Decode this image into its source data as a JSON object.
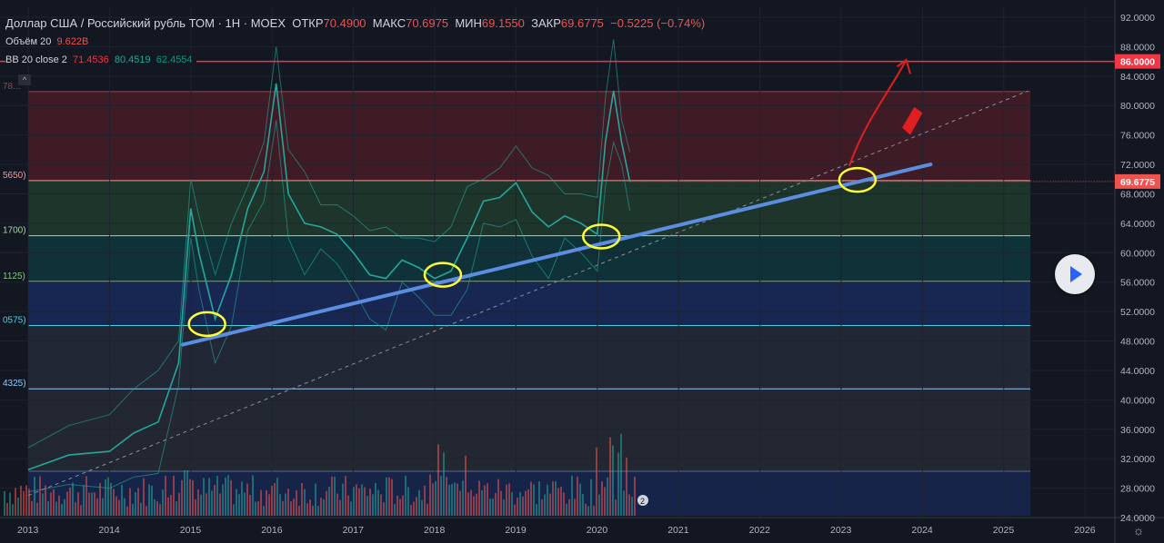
{
  "header": {
    "title": "Доллар США / Российский рубль ТОМ · 1Н · MOEX",
    "open_label": "ОТКР",
    "open": "70.4900",
    "high_label": "МАКС",
    "high": "70.6975",
    "low_label": "МИН",
    "low": "69.1550",
    "close_label": "ЗАКР",
    "close": "69.6775",
    "change": "−0.5225 (−0.74%)"
  },
  "volume": {
    "label": "Объём 20",
    "value": "9.622B"
  },
  "bb": {
    "label": "BB 20 close 2",
    "v1": "71.4536",
    "v2": "80.4519",
    "v3": "62.4554"
  },
  "colors": {
    "bg": "#131722",
    "up": "#26a69a",
    "down": "#ef5350",
    "trend": "#5b8de0",
    "resistance": "#f23645",
    "highlight": "#ffff33",
    "arrow": "#e02020"
  },
  "chart_data": {
    "type": "line",
    "title": "Доллар США / Российский рубль ТОМ",
    "xlabel": "",
    "ylabel": "",
    "x_ticks": [
      "2013",
      "2014",
      "2015",
      "2016",
      "2017",
      "2018",
      "2019",
      "2020",
      "2021",
      "2022",
      "2023",
      "2024",
      "2025",
      "2026"
    ],
    "y_ticks": [
      "92.0000",
      "88.0000",
      "84.0000",
      "80.0000",
      "76.0000",
      "72.0000",
      "68.0000",
      "64.0000",
      "60.0000",
      "56.0000",
      "52.0000",
      "48.0000",
      "44.0000",
      "40.0000",
      "36.0000",
      "32.0000",
      "28.0000",
      "24.0000"
    ],
    "ylim": [
      24,
      92
    ],
    "grid": true,
    "series": [
      {
        "x": [
          2013.0,
          2013.5,
          2014.0,
          2014.3,
          2014.6,
          2014.85,
          2015.0,
          2015.1,
          2015.3,
          2015.5,
          2015.7,
          2015.9,
          2016.05,
          2016.2,
          2016.4,
          2016.6,
          2016.8,
          2017.0,
          2017.2,
          2017.4,
          2017.6,
          2017.8,
          2018.0,
          2018.2,
          2018.4,
          2018.6,
          2018.8,
          2019.0,
          2019.2,
          2019.4,
          2019.6,
          2019.8,
          2020.0,
          2020.1,
          2020.2,
          2020.3,
          2020.4
        ],
        "values": [
          30.5,
          32.5,
          33.0,
          35.5,
          37.0,
          45.0,
          66.0,
          60.0,
          51.0,
          57.0,
          66.0,
          71.0,
          83.0,
          68.0,
          64.0,
          63.5,
          62.5,
          60.0,
          57.0,
          56.5,
          59.0,
          58.0,
          56.5,
          57.5,
          62.0,
          67.0,
          67.5,
          69.5,
          65.5,
          63.5,
          65.0,
          64.0,
          62.5,
          75.0,
          82.0,
          75.0,
          69.68
        ]
      }
    ],
    "last_price": "69.6775",
    "resistance_level": "86.0000",
    "fib_labels": [
      "78...",
      "5650)",
      "1700)",
      "1125)",
      "0575)",
      "4325)"
    ],
    "fib_levels": [
      81.9,
      69.8,
      62.3,
      56.1,
      50.1,
      41.5
    ],
    "trendline": {
      "from": [
        2014.9,
        47.5
      ],
      "to": [
        2024.1,
        72.0
      ]
    },
    "dashed_line": {
      "from": [
        2013.0,
        27.0
      ],
      "to": [
        2025.3,
        82.0
      ]
    },
    "volume_badge": "2"
  }
}
